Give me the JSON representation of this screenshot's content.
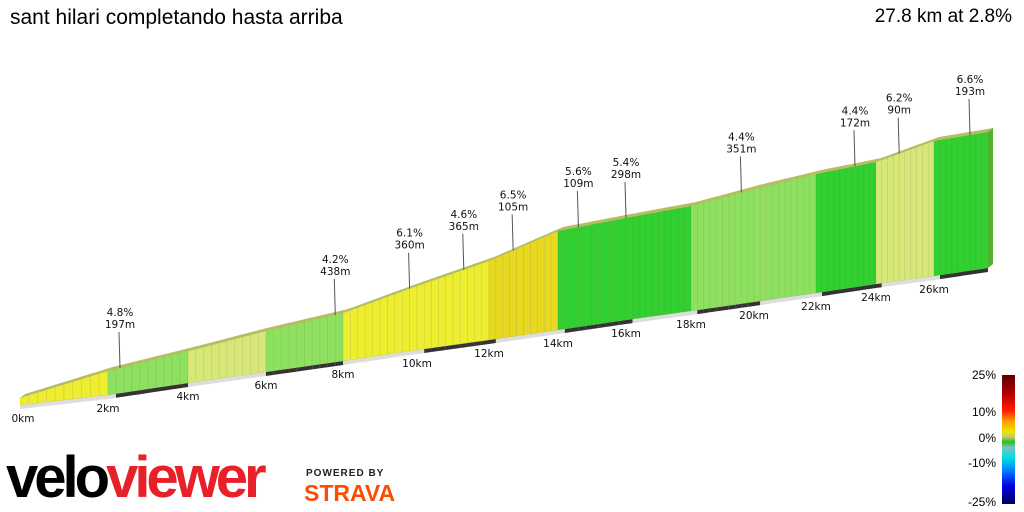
{
  "header": {
    "title": "sant hilari completando hasta arriba",
    "summary": "27.8 km at 2.8%"
  },
  "chart_data": {
    "type": "area",
    "style": "3d elevation profile colored by gradient",
    "distance_unit": "km",
    "total_distance_km": 27.8,
    "average_gradient_pct": 2.8,
    "x_ticks": [
      "0km",
      "2km",
      "4km",
      "6km",
      "8km",
      "10km",
      "12km",
      "14km",
      "16km",
      "18km",
      "20km",
      "22km",
      "24km",
      "26km"
    ],
    "profile": {
      "km": [
        0,
        2,
        4,
        6,
        8,
        10,
        12,
        14,
        16,
        18,
        20,
        22,
        24,
        26,
        27.8
      ],
      "elevation_gain_m": [
        0,
        103,
        150,
        205,
        247,
        344,
        434,
        555,
        573,
        591,
        639,
        675,
        693,
        772,
        778
      ]
    },
    "climb_annotations": [
      {
        "km": 2.3,
        "gradient": "4.8%",
        "length": "197m"
      },
      {
        "km": 7.8,
        "gradient": "4.2%",
        "length": "438m"
      },
      {
        "km": 9.8,
        "gradient": "6.1%",
        "length": "360m"
      },
      {
        "km": 11.3,
        "gradient": "4.6%",
        "length": "365m"
      },
      {
        "km": 12.7,
        "gradient": "6.5%",
        "length": "105m"
      },
      {
        "km": 14.6,
        "gradient": "5.6%",
        "length": "109m"
      },
      {
        "km": 16.0,
        "gradient": "5.4%",
        "length": "298m"
      },
      {
        "km": 19.6,
        "gradient": "4.4%",
        "length": "351m"
      },
      {
        "km": 23.3,
        "gradient": "4.4%",
        "length": "172m"
      },
      {
        "km": 24.8,
        "gradient": "6.2%",
        "length": "90m"
      },
      {
        "km": 27.2,
        "gradient": "6.6%",
        "length": "193m"
      }
    ],
    "legend": {
      "labels": [
        "25%",
        "10%",
        "0%",
        "-10%",
        "-25%"
      ],
      "placement": "bottom-right"
    }
  },
  "branding": {
    "velo": "velo",
    "viewer": "viewer",
    "powered_by": "POWERED BY",
    "strava": "STRAVA",
    "strava_color": "#fc4c02",
    "viewer_color": "#e8202a"
  }
}
